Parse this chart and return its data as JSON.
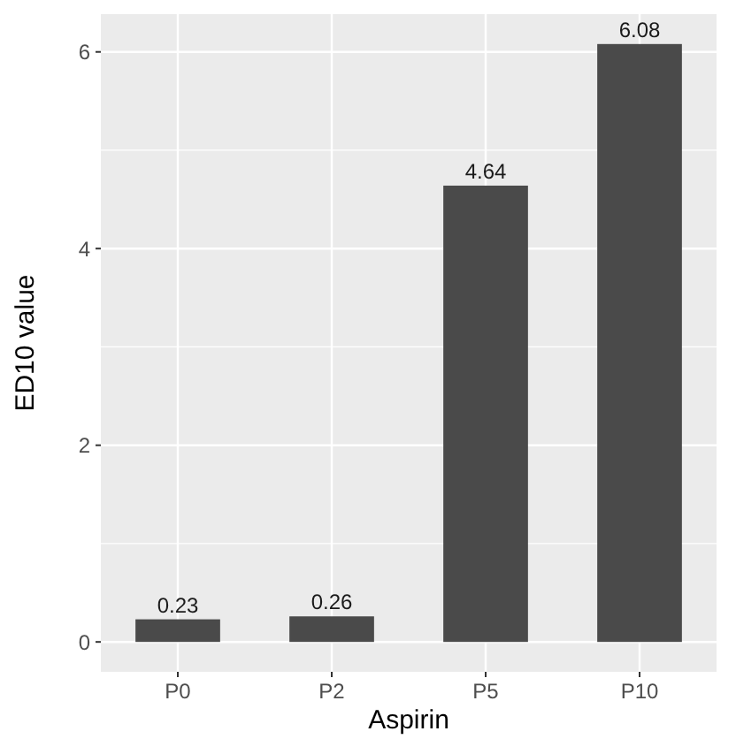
{
  "chart_data": {
    "type": "bar",
    "xlabel": "Aspirin",
    "ylabel": "ED10 value",
    "categories": [
      "P0",
      "P2",
      "P5",
      "P10"
    ],
    "values": [
      0.23,
      0.26,
      4.64,
      6.08
    ],
    "color": "#4a4a4a",
    "ylim": [
      -0.304,
      6.384
    ],
    "yticks": [
      0,
      2,
      4,
      6
    ],
    "grid": true,
    "data_labels": true
  }
}
